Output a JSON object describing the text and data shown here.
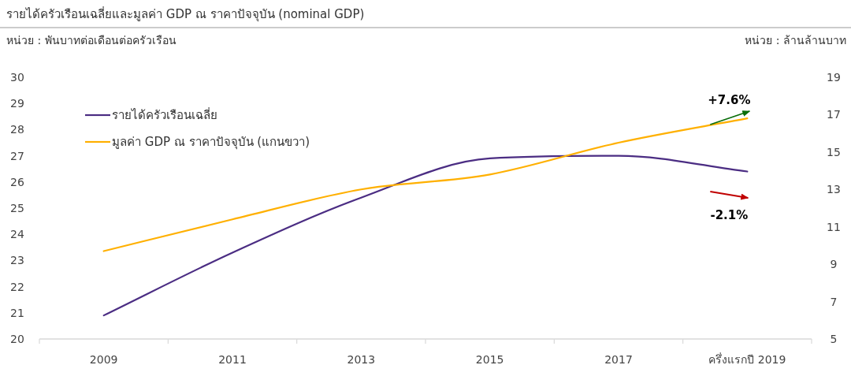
{
  "chart_data": {
    "type": "line",
    "title": "รายได้ครัวเรือนเฉลี่ยและมูลค่า GDP ณ ราคาปัจจุบัน (nominal GDP)",
    "ylabel": "หน่วย : พันบาทต่อเดือนต่อครัวเรือน",
    "y2label": "หน่วย : ล้านล้านบาท",
    "categories": [
      "2009",
      "2011",
      "2013",
      "2015",
      "2017",
      "ครึ่งแรกปี 2019"
    ],
    "series": [
      {
        "name": "รายได้ครัวเรือนเฉลี่ย",
        "color": "#4b2d83",
        "values": [
          20.9,
          23.3,
          25.4,
          26.9,
          27.0,
          26.4
        ]
      },
      {
        "name": "มูลค่า GDP ณ ราคาปัจจุบัน (แกนขวา)",
        "color": "#ffb000",
        "axis": "y2",
        "values": [
          9.7,
          11.4,
          13.0,
          13.8,
          15.5,
          16.8
        ]
      }
    ],
    "ylim": [
      20,
      30
    ],
    "yticks": [
      20,
      21,
      22,
      23,
      24,
      25,
      26,
      27,
      28,
      29,
      30
    ],
    "y2lim": [
      5,
      19
    ],
    "y2ticks": [
      5,
      7,
      9,
      11,
      13,
      15,
      17,
      19
    ],
    "annotations": [
      "+7.6%",
      "-2.1%"
    ],
    "legend": "top left",
    "grid": false,
    "marker": "none",
    "line_style": "solid"
  }
}
